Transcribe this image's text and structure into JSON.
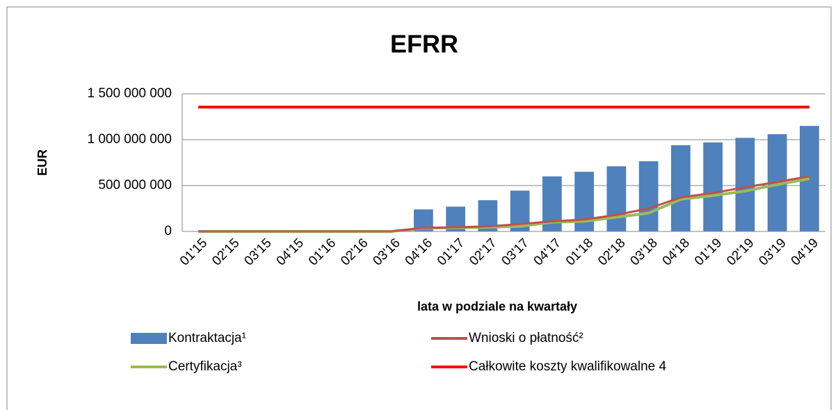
{
  "chart_data": {
    "type": "bar",
    "title": "EFRR",
    "x_label": "lata w podziale na kwartały",
    "y_label": "EUR",
    "categories": [
      "01'15",
      "02'15",
      "03'15",
      "04'15",
      "01'16",
      "02'16",
      "03'16",
      "04'16",
      "01'17",
      "02'17",
      "03'17",
      "04'17",
      "01'18",
      "02'18",
      "03'18",
      "04'18",
      "01'19",
      "02'19",
      "03'19",
      "04'19"
    ],
    "series": [
      {
        "name": "Kontraktacja¹",
        "type": "bar",
        "color": "#4f81bd",
        "values": [
          0,
          0,
          0,
          0,
          0,
          0,
          0,
          240000000,
          270000000,
          340000000,
          445000000,
          600000000,
          650000000,
          710000000,
          765000000,
          940000000,
          970000000,
          1020000000,
          1060000000,
          1150000000
        ]
      },
      {
        "name": "Wnioski o płatność²",
        "type": "line",
        "color": "#c0504d",
        "values": [
          0,
          0,
          0,
          0,
          0,
          0,
          0,
          40000000,
          45000000,
          55000000,
          80000000,
          110000000,
          130000000,
          180000000,
          250000000,
          370000000,
          420000000,
          480000000,
          540000000,
          600000000
        ]
      },
      {
        "name": "Certyfikacja³",
        "type": "line",
        "color": "#9bbb59",
        "values": [
          0,
          0,
          0,
          0,
          0,
          0,
          0,
          35000000,
          40000000,
          45000000,
          55000000,
          100000000,
          110000000,
          155000000,
          200000000,
          350000000,
          390000000,
          440000000,
          510000000,
          575000000
        ]
      },
      {
        "name": "Całkowite koszty kwalifikowalne 4",
        "type": "line",
        "color": "#ff0000",
        "values": [
          1355000000,
          1355000000,
          1355000000,
          1355000000,
          1355000000,
          1355000000,
          1355000000,
          1355000000,
          1355000000,
          1355000000,
          1355000000,
          1355000000,
          1355000000,
          1355000000,
          1355000000,
          1355000000,
          1355000000,
          1355000000,
          1355000000,
          1355000000
        ]
      }
    ],
    "ylim": [
      0,
      1500000000
    ],
    "yticks": [
      0,
      {
        "value": 500000000,
        "label": "500 000 000"
      },
      {
        "value": 1000000000,
        "label": "1 000 000 000"
      },
      {
        "value": 1500000000,
        "label": "1 500 000 000"
      }
    ],
    "grid": true,
    "legend": "bottom"
  }
}
